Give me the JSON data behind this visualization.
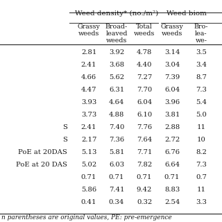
{
  "header_group1": "Weed density* (no./m²)",
  "header_group2": "Weed biom",
  "sub_headers": [
    "Grassy\nweeds",
    "Broad-\nleaved\nweeds",
    "Total\nweeds",
    "Grassy\nweeds",
    "Bro-\nlea-\nwe-"
  ],
  "row_labels": [
    "",
    "",
    "",
    "",
    "",
    "",
    "S",
    "S",
    "PoE at 20DAS",
    "PoE at 20 DAS",
    "",
    "",
    ""
  ],
  "row_data": [
    [
      "2.81",
      "3.92",
      "4.78",
      "3.14",
      "3.5"
    ],
    [
      "2.41",
      "3.68",
      "4.40",
      "3.04",
      "3.4"
    ],
    [
      "4.66",
      "5.62",
      "7.27",
      "7.39",
      "8.7"
    ],
    [
      "4.47",
      "6.31",
      "7.70",
      "6.04",
      "7.3"
    ],
    [
      "3.93",
      "4.64",
      "6.04",
      "3.96",
      "5.4"
    ],
    [
      "3.73",
      "4.88",
      "6.10",
      "3.81",
      "5.0"
    ],
    [
      "2.41",
      "7.40",
      "7.76",
      "2.88",
      "11"
    ],
    [
      "2.17",
      "7.36",
      "7.64",
      "2.72",
      "10"
    ],
    [
      "5.13",
      "5.81",
      "7.71",
      "6.76",
      "8.2"
    ],
    [
      "5.02",
      "6.03",
      "7.82",
      "6.64",
      "7.3"
    ],
    [
      "0.71",
      "0.71",
      "0.71",
      "0.71",
      "0.7"
    ],
    [
      "5.86",
      "7.41",
      "9.42",
      "8.83",
      "11"
    ],
    [
      "0.41",
      "0.34",
      "0.32",
      "2.54",
      "3.3"
    ]
  ],
  "footnote": "n parentheses are original values, PE: pre-emergence",
  "bg_color": "#ffffff",
  "text_color": "#1a1a1a",
  "line_color": "#333333"
}
